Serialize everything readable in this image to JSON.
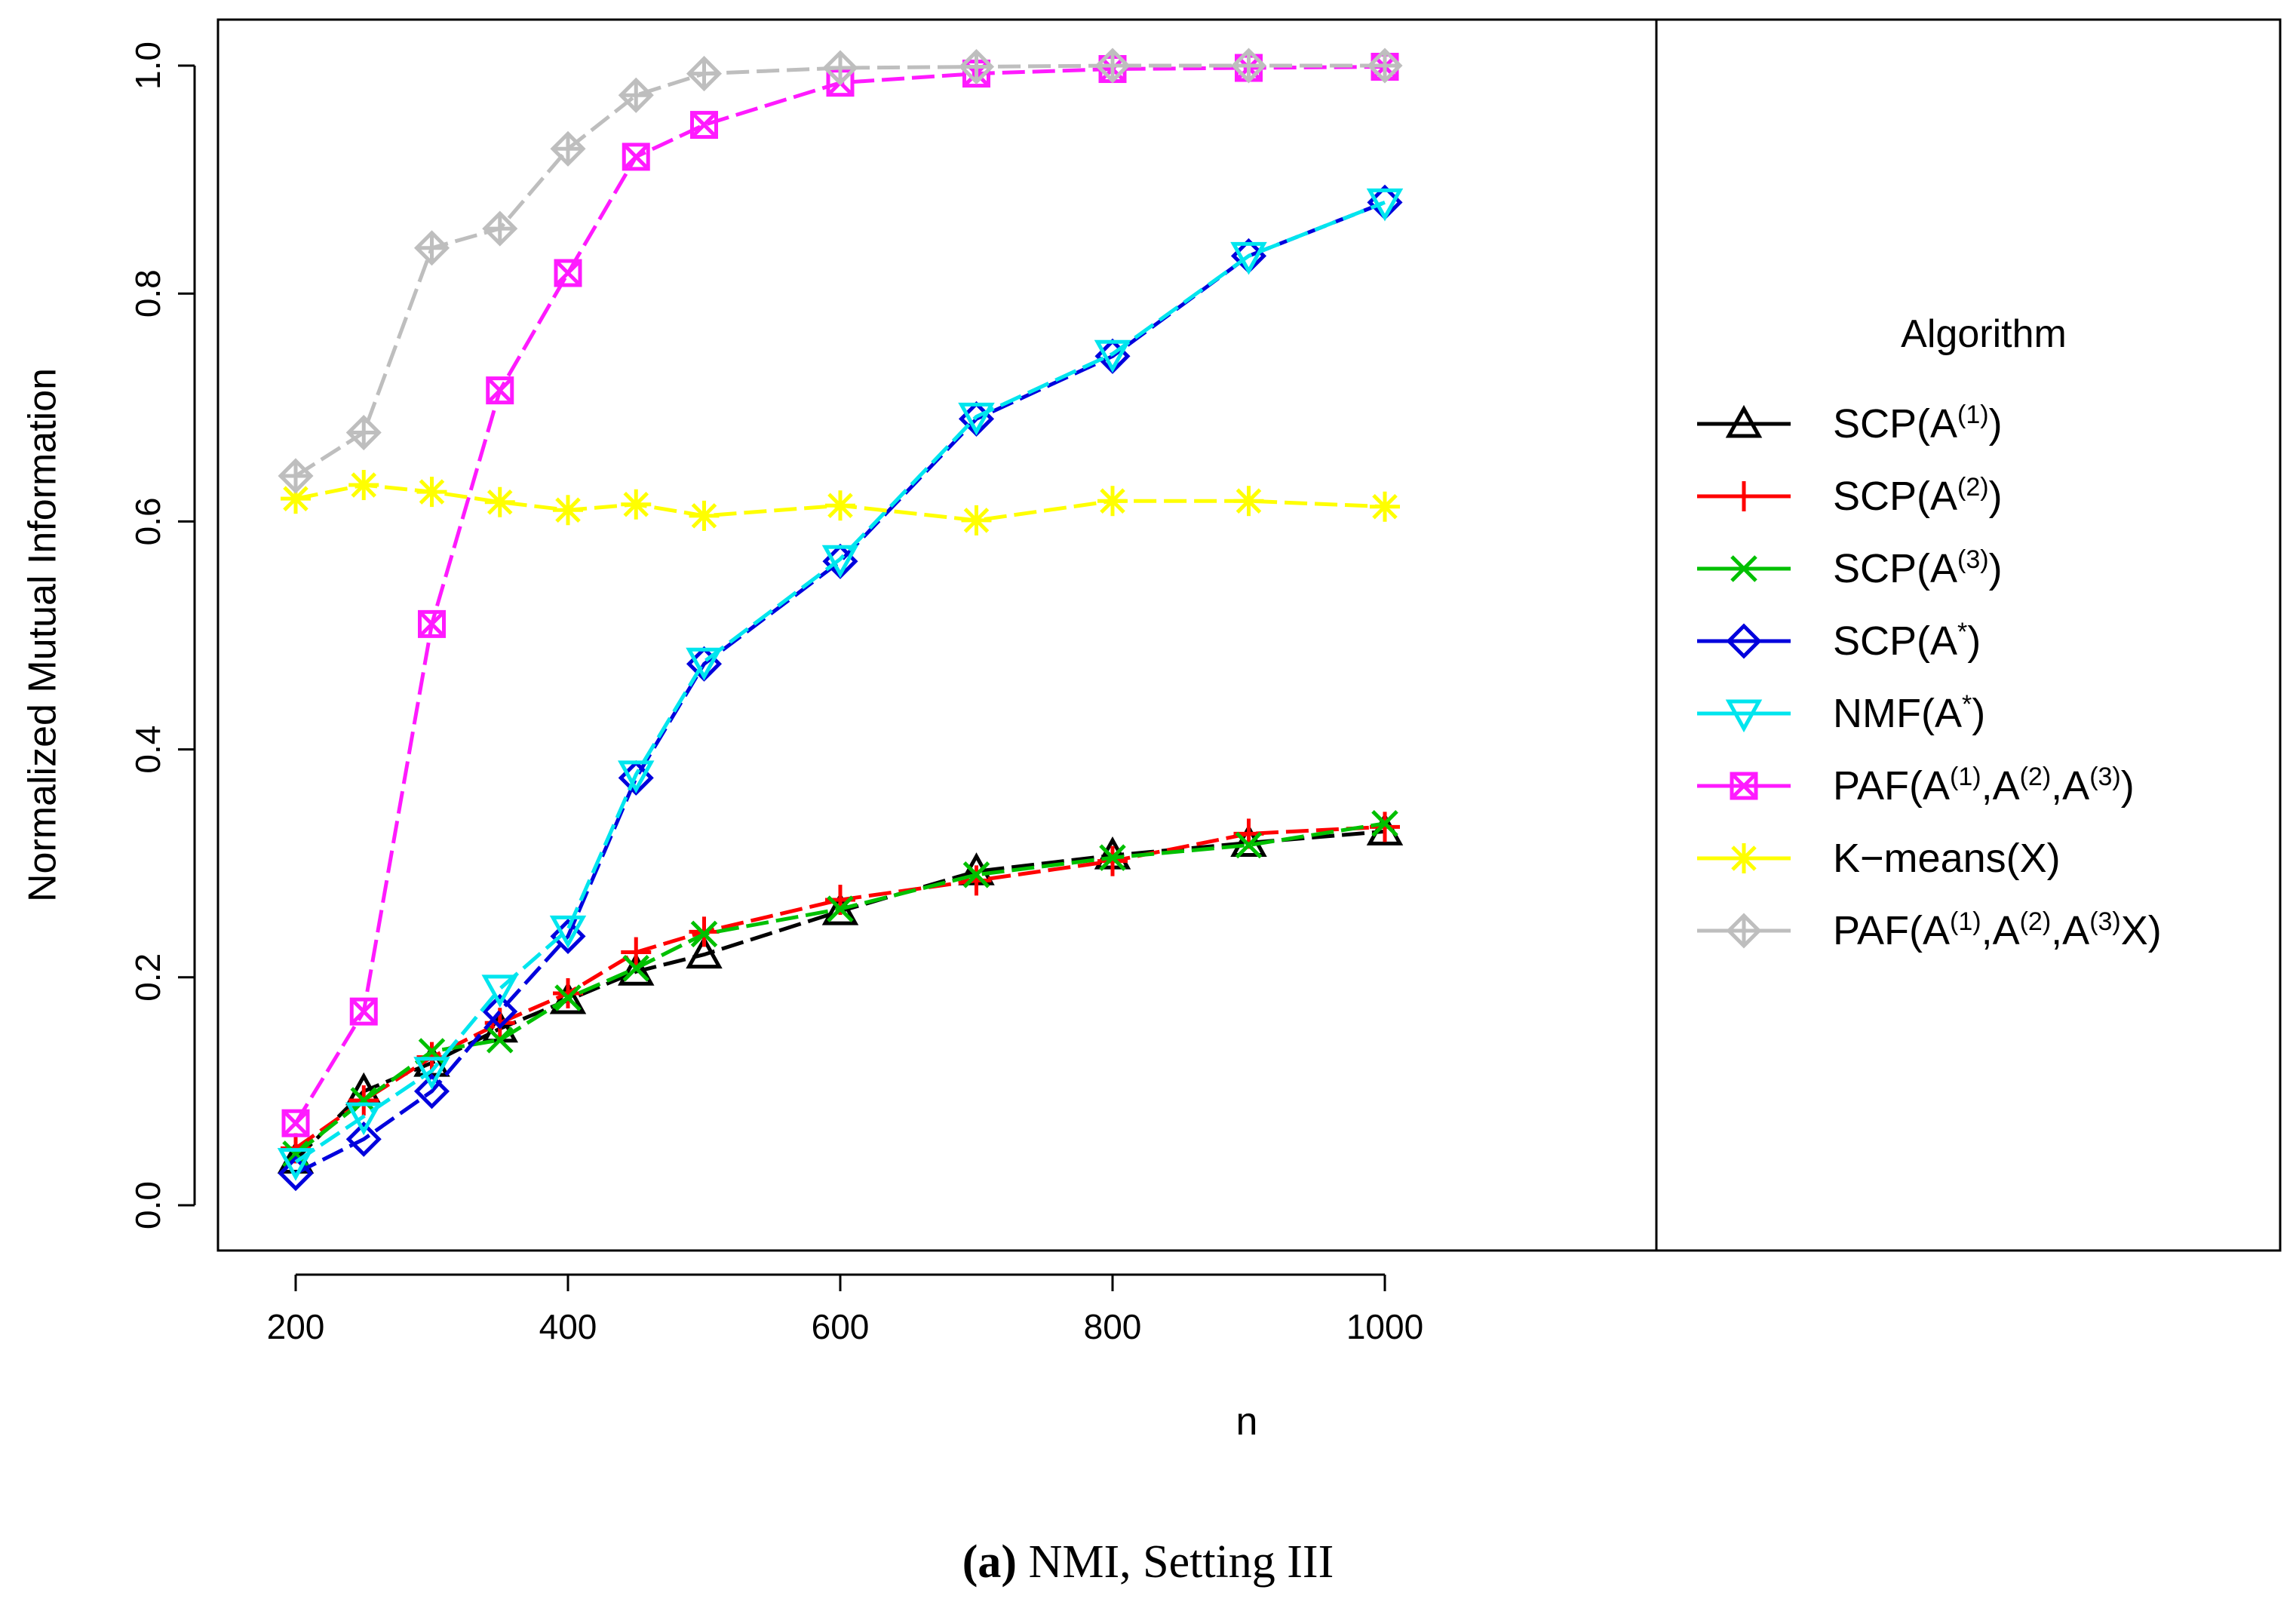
{
  "chart_data": {
    "type": "line",
    "xlabel": "n",
    "ylabel": "Normalized Mutual Information",
    "xlim": [
      200,
      1000
    ],
    "ylim": [
      0.0,
      1.0
    ],
    "x_ticks": [
      "200",
      "400",
      "600",
      "800",
      "1000"
    ],
    "y_ticks": [
      "0.0",
      "0.2",
      "0.4",
      "0.6",
      "0.8",
      "1.0"
    ],
    "x": [
      200,
      250,
      300,
      350,
      400,
      450,
      500,
      600,
      700,
      800,
      900,
      1000
    ],
    "legend_title": "Algorithm",
    "legend_position": "right",
    "series": [
      {
        "name": "SCP(A(1))",
        "label_parts": [
          [
            "SCP(A",
            ""
          ],
          [
            "(1)",
            "sup"
          ],
          [
            ")",
            ""
          ]
        ],
        "color": "#000000",
        "marker": "triangle-up",
        "values": [
          0.04,
          0.1,
          0.125,
          0.155,
          0.18,
          0.205,
          0.22,
          0.258,
          0.293,
          0.307,
          0.318,
          0.328
        ]
      },
      {
        "name": "SCP(A(2))",
        "label_parts": [
          [
            "SCP(A",
            ""
          ],
          [
            "(2)",
            "sup"
          ],
          [
            ")",
            ""
          ]
        ],
        "color": "#ff0000",
        "marker": "plus",
        "values": [
          0.05,
          0.092,
          0.13,
          0.16,
          0.186,
          0.222,
          0.24,
          0.268,
          0.285,
          0.302,
          0.326,
          0.332
        ]
      },
      {
        "name": "SCP(A(3))",
        "label_parts": [
          [
            "SCP(A",
            ""
          ],
          [
            "(3)",
            "sup"
          ],
          [
            ")",
            ""
          ]
        ],
        "color": "#00c000",
        "marker": "cross",
        "values": [
          0.045,
          0.092,
          0.135,
          0.145,
          0.182,
          0.208,
          0.238,
          0.26,
          0.29,
          0.305,
          0.316,
          0.335
        ]
      },
      {
        "name": "SCP(A*)",
        "label_parts": [
          [
            "SCP(A",
            ""
          ],
          [
            "*",
            "sup"
          ],
          [
            ")",
            ""
          ]
        ],
        "color": "#0000dd",
        "marker": "diamond",
        "values": [
          0.028,
          0.058,
          0.1,
          0.17,
          0.236,
          0.375,
          0.475,
          0.565,
          0.69,
          0.745,
          0.833,
          0.88
        ]
      },
      {
        "name": "NMF(A*)",
        "label_parts": [
          [
            "NMF(A",
            ""
          ],
          [
            "*",
            "sup"
          ],
          [
            ")",
            ""
          ]
        ],
        "color": "#00e5ee",
        "marker": "triangle-down",
        "values": [
          0.038,
          0.078,
          0.118,
          0.19,
          0.242,
          0.378,
          0.477,
          0.567,
          0.692,
          0.747,
          0.833,
          0.88
        ]
      },
      {
        "name": "PAF(A(1),A(2),A(3))",
        "label_parts": [
          [
            "PAF(A",
            ""
          ],
          [
            "(1)",
            "sup"
          ],
          [
            ",A",
            ""
          ],
          [
            "(2)",
            "sup"
          ],
          [
            ",A",
            ""
          ],
          [
            "(3)",
            "sup"
          ],
          [
            ")",
            ""
          ]
        ],
        "color": "#ff1aff",
        "marker": "square-x",
        "values": [
          0.072,
          0.17,
          0.51,
          0.715,
          0.818,
          0.92,
          0.948,
          0.985,
          0.993,
          0.997,
          0.998,
          0.999
        ]
      },
      {
        "name": "K-means(X)",
        "label_parts": [
          [
            "K−means(X)",
            ""
          ]
        ],
        "color": "#ffff00",
        "marker": "asterisk",
        "values": [
          0.62,
          0.632,
          0.626,
          0.617,
          0.61,
          0.615,
          0.605,
          0.614,
          0.601,
          0.618,
          0.618,
          0.613
        ]
      },
      {
        "name": "PAF(A(1),A(2),A(3)X)",
        "label_parts": [
          [
            "PAF(A",
            ""
          ],
          [
            "(1)",
            "sup"
          ],
          [
            ",A",
            ""
          ],
          [
            "(2)",
            "sup"
          ],
          [
            ",A",
            ""
          ],
          [
            "(3)",
            "sup"
          ],
          [
            "X)",
            ""
          ]
        ],
        "color": "#bebebe",
        "marker": "diamond-plus",
        "values": [
          0.64,
          0.678,
          0.84,
          0.857,
          0.927,
          0.974,
          0.993,
          0.998,
          0.999,
          1.0,
          1.0,
          1.0
        ]
      }
    ]
  },
  "caption": {
    "letter": "(a)",
    "text": " NMI, Setting III"
  }
}
